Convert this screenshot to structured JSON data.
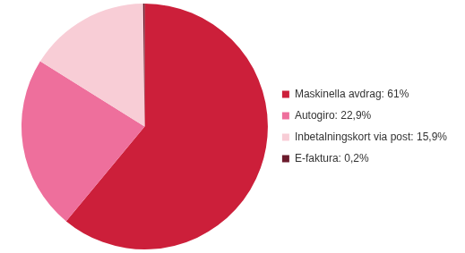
{
  "chart_data": {
    "type": "pie",
    "categories": [
      "Maskinella avdrag: 61%",
      "Autogiro: 22,9%",
      "Inbetalningskort via post: 15,9%",
      "E-faktura: 0,2%"
    ],
    "values": [
      61,
      22.9,
      15.9,
      0.2
    ],
    "colors": [
      "#cc1f3a",
      "#ee6f9c",
      "#f8cdd6",
      "#6b1a2c"
    ],
    "legend": "right"
  }
}
